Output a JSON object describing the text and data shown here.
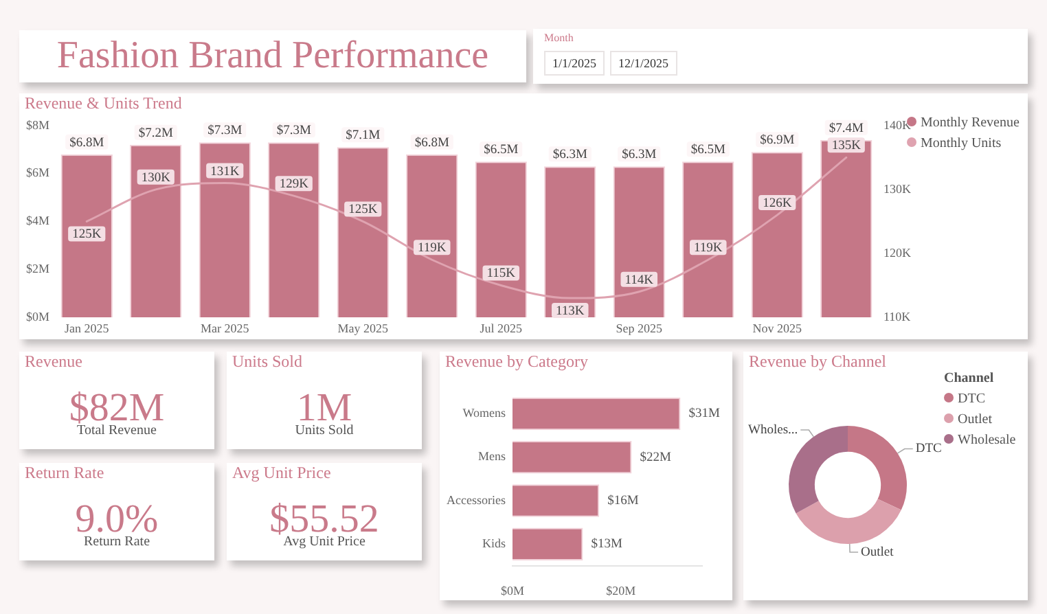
{
  "chart_data": [
    {
      "type": "other",
      "title": "Fashion Brand Performance"
    },
    {
      "type": "other",
      "title": "Month",
      "annotations": [
        "1/1/2025",
        "12/1/2025"
      ]
    },
    {
      "type": "bar",
      "title": "Revenue & Units Trend",
      "categories": [
        "Jan 2025",
        null,
        "Mar 2025",
        null,
        "May 2025",
        null,
        "Jul 2025",
        null,
        "Sep 2025",
        null,
        "Nov 2025",
        null
      ],
      "series": [
        {
          "name": "Monthly Revenue",
          "type": "bar",
          "color": "#c57787",
          "values": [
            6.8,
            7.2,
            7.3,
            7.3,
            7.1,
            6.8,
            6.5,
            6.3,
            6.3,
            6.5,
            6.9,
            7.4
          ],
          "value_labels": [
            "$6.8M",
            "$7.2M",
            "$7.3M",
            "$7.3M",
            "$7.1M",
            "$6.8M",
            "$6.5M",
            "$6.3M",
            "$6.3M",
            "$6.5M",
            "$6.9M",
            "$7.4M"
          ]
        },
        {
          "name": "Monthly Units",
          "type": "line",
          "axis": "y2",
          "color": "#dfa3b0",
          "values": [
            125,
            130,
            131,
            129,
            125,
            119,
            115,
            113,
            114,
            119,
            126,
            135
          ],
          "value_labels": [
            "125K",
            "130K",
            "131K",
            "129K",
            "125K",
            "119K",
            "115K",
            "113K",
            "114K",
            "119K",
            "126K",
            "135K"
          ]
        }
      ],
      "ylim": [
        0,
        8
      ],
      "yticks": [
        {
          "value": 0,
          "label": "$0M"
        },
        {
          "value": 2,
          "label": "$2M"
        },
        {
          "value": 4,
          "label": "$4M"
        },
        {
          "value": 6,
          "label": "$6M"
        },
        {
          "value": 8,
          "label": "$8M"
        }
      ],
      "y2lim": [
        110,
        140
      ],
      "y2ticks": [
        {
          "value": 110,
          "label": "110K"
        },
        {
          "value": 120,
          "label": "120K"
        },
        {
          "value": 130,
          "label": "130K"
        },
        {
          "value": 140,
          "label": "140K"
        }
      ],
      "legend": "top right"
    },
    {
      "type": "other",
      "title": "Revenue",
      "annotations": [
        "$82M",
        "Total Revenue"
      ]
    },
    {
      "type": "other",
      "title": "Units Sold",
      "annotations": [
        "1M",
        "Units Sold"
      ]
    },
    {
      "type": "bar",
      "title": "Revenue by Category",
      "orientation": "horizontal",
      "categories": [
        "Womens",
        "Mens",
        "Accessories",
        "Kids"
      ],
      "values": [
        31,
        22,
        16,
        13
      ],
      "color": "#c57787",
      "value_labels": [
        "$31M",
        "$22M",
        "$16M",
        "$13M"
      ],
      "xlim": [
        0,
        35
      ],
      "xticks": [
        {
          "value": 0,
          "label": "$0M"
        },
        {
          "value": 20,
          "label": "$20M"
        }
      ]
    },
    {
      "type": "donut",
      "title": "Revenue by Channel",
      "categories": [
        "DTC",
        "Outlet",
        "Wholesale"
      ],
      "values": [
        32,
        35,
        33
      ],
      "colors": [
        "#c57787",
        "#dca0ac",
        "#a96f8a"
      ],
      "value_labels": [
        "DTC",
        "Outlet",
        "Wholes..."
      ],
      "legend_title": "Channel",
      "legend": "top right"
    },
    {
      "type": "other",
      "title": "Return Rate",
      "annotations": [
        "9.0%",
        "Return Rate"
      ]
    },
    {
      "type": "other",
      "title": "Avg Unit Price",
      "annotations": [
        "$55.52",
        "Avg Unit Price"
      ]
    }
  ]
}
